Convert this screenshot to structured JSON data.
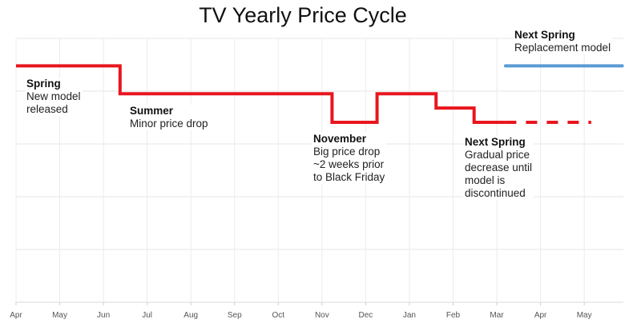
{
  "chart_data": {
    "type": "line",
    "title": "TV Yearly Price Cycle",
    "xlabel": "",
    "ylabel": "",
    "x_tick_labels": [
      "Apr",
      "May",
      "Jun",
      "Jul",
      "Aug",
      "Sep",
      "Oct",
      "Nov",
      "Dec",
      "Jan",
      "Feb",
      "Mar",
      "Apr",
      "May"
    ],
    "xlim": [
      0,
      14
    ],
    "ylim": [
      0,
      5
    ],
    "grid": true,
    "series": [
      {
        "color": "#e8161e",
        "style": "solid",
        "step": true,
        "x": [
          0,
          2.38,
          2.38,
          7.23,
          7.23,
          8.26,
          8.26,
          9.61,
          9.61,
          10.48,
          10.48,
          11.19
        ],
        "y": [
          4.48,
          4.48,
          3.95,
          3.95,
          3.41,
          3.41,
          3.95,
          3.95,
          3.68,
          3.68,
          3.41,
          3.41
        ]
      },
      {
        "color": "#e8161e",
        "style": "dashed",
        "x": [
          11.19,
          13.16
        ],
        "y": [
          3.41,
          3.41
        ]
      },
      {
        "color": "#5b9bd5",
        "style": "solid",
        "x": [
          11.2,
          13.87
        ],
        "y": [
          4.48,
          4.48
        ]
      }
    ],
    "annotations": [
      {
        "heading": "Spring",
        "text": [
          "New model",
          "released"
        ]
      },
      {
        "heading": "Summer",
        "text": [
          "Minor price drop"
        ]
      },
      {
        "heading": "November",
        "text": [
          "Big price drop",
          "~2 weeks prior",
          "to Black Friday"
        ]
      },
      {
        "heading": "Next Spring",
        "text": [
          "Gradual price",
          "decrease until",
          "model is",
          "discontinued"
        ]
      },
      {
        "heading": "Next Spring",
        "text": [
          "Replacement model"
        ]
      }
    ]
  }
}
